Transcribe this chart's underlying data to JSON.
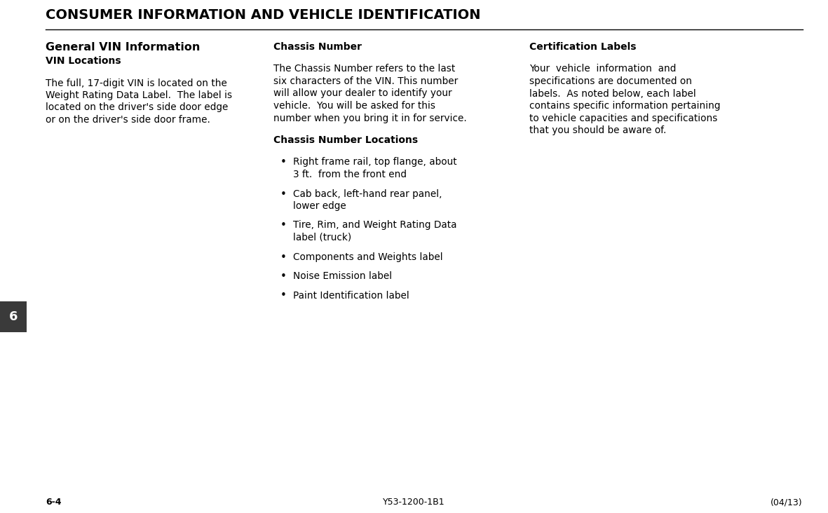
{
  "header_text": "CONSUMER INFORMATION AND VEHICLE IDENTIFICATION",
  "page_bg": "#ffffff",
  "header_color": "#000000",
  "col1_title": "General VIN Information",
  "col1_subtitle": "VIN Locations",
  "col1_body_lines": [
    "The full, 17-digit VIN is located on the",
    "Weight Rating Data Label.  The label is",
    "located on the driver's side door edge",
    "or on the driver's side door frame."
  ],
  "col2_title": "Chassis Number",
  "col2_body_lines": [
    "The Chassis Number refers to the last",
    "six characters of the VIN. This number",
    "will allow your dealer to identify your",
    "vehicle.  You will be asked for this",
    "number when you bring it in for service."
  ],
  "col2_subtitle": "Chassis Number Locations",
  "col2_bullets": [
    [
      "Right frame rail, top flange, about",
      "3 ft.  from the front end"
    ],
    [
      "Cab back, left-hand rear panel,",
      "lower edge"
    ],
    [
      "Tire, Rim, and Weight Rating Data",
      "label (truck)"
    ],
    [
      "Components and Weights label"
    ],
    [
      "Noise Emission label"
    ],
    [
      "Paint Identification label"
    ]
  ],
  "col3_title": "Certification Labels",
  "col3_body_lines": [
    "Your  vehicle  information  and",
    "specifications are documented on",
    "labels.  As noted below, each label",
    "contains specific information pertaining",
    "to vehicle capacities and specifications",
    "that you should be aware of."
  ],
  "footer_left": "6-4",
  "footer_center": "Y53-1200-1B1",
  "footer_right": "(04/13)",
  "page_number": "6",
  "page_number_bg": "#3a3a3a",
  "page_number_color": "#ffffff"
}
